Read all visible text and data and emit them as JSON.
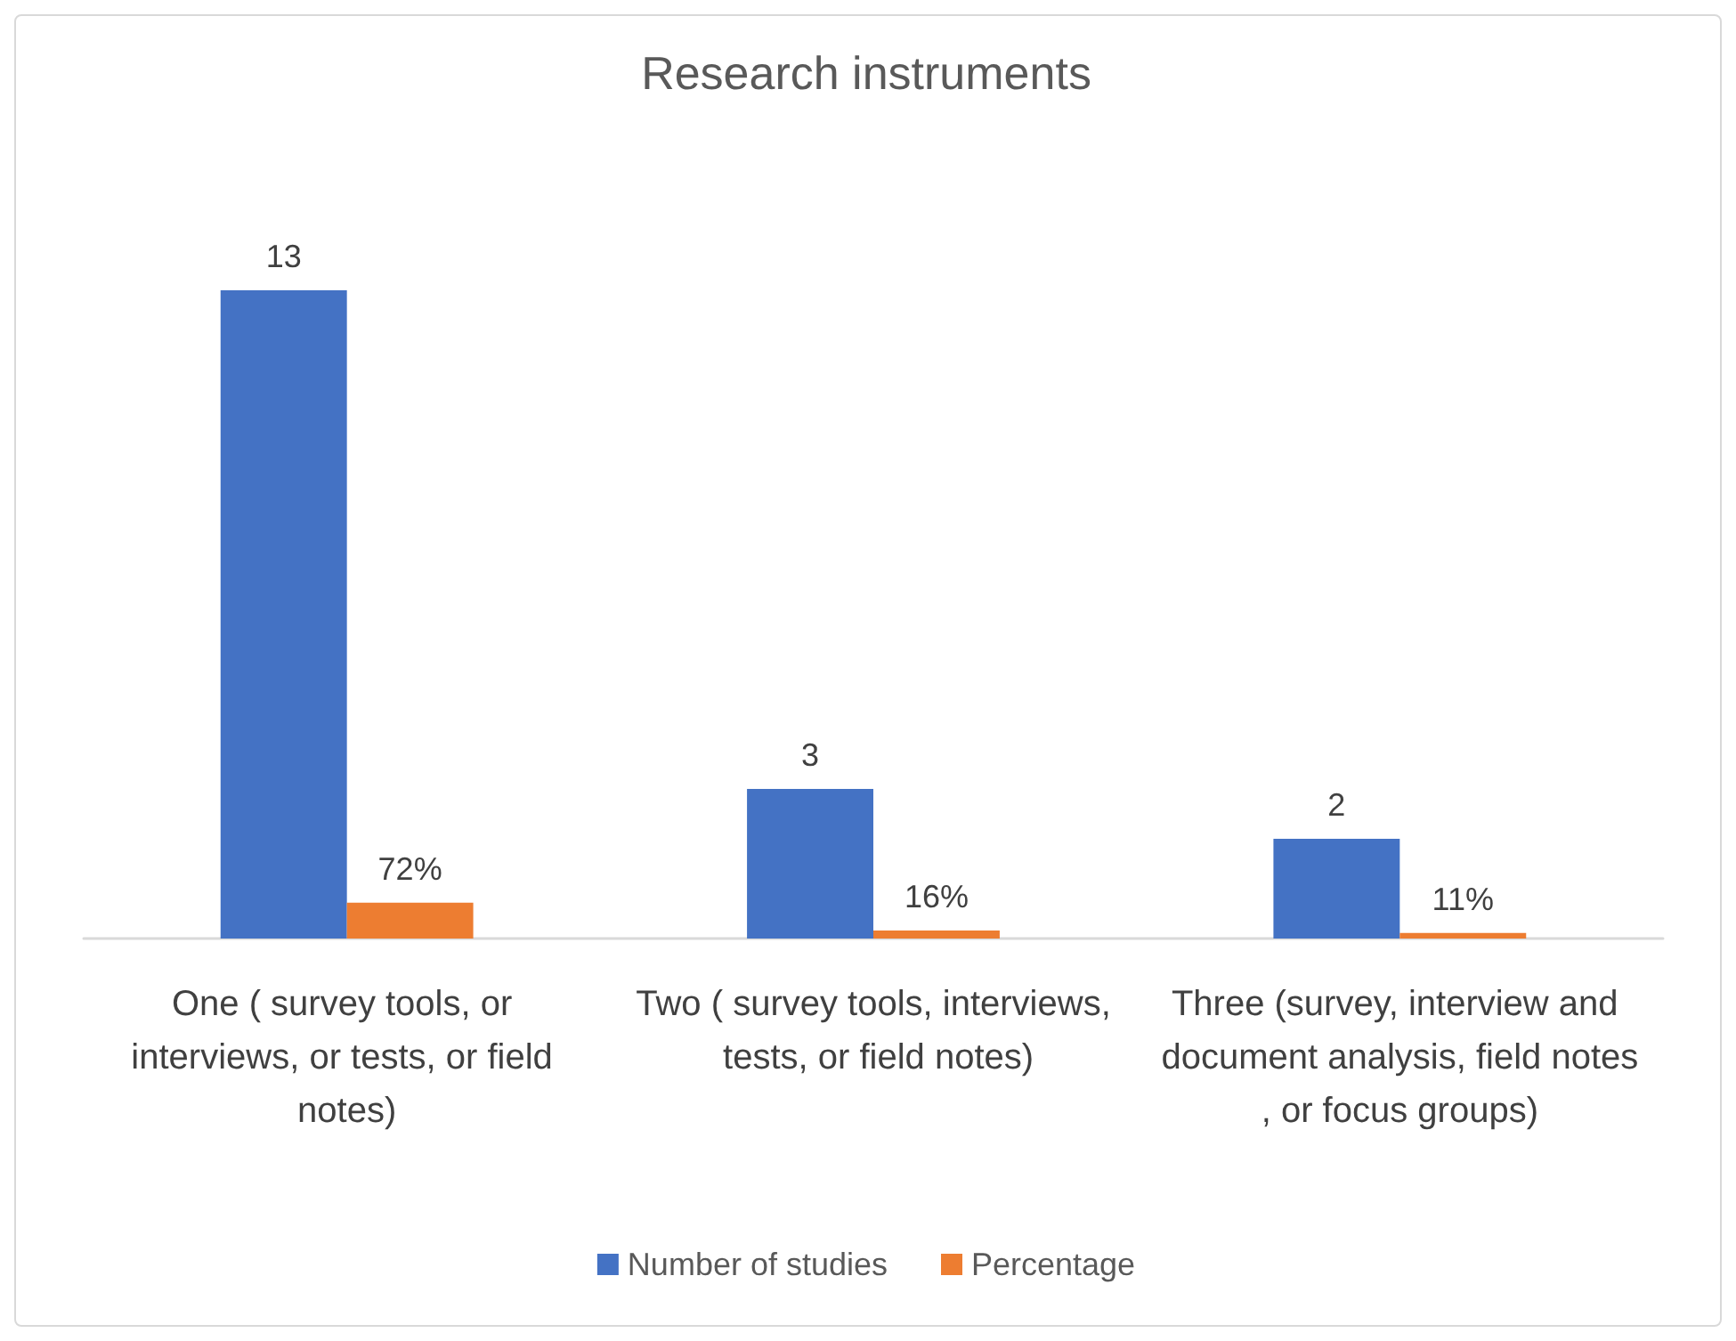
{
  "chart_data": {
    "type": "bar",
    "title": "Research instruments",
    "categories": [
      "One ( survey tools, or interviews, or tests, or field notes)",
      "Two ( survey tools, interviews, tests, or field notes)",
      "Three (survey, interview and document analysis, field notes, or focus groups)"
    ],
    "series": [
      {
        "name": "Number of studies",
        "color": "#4472c4",
        "values": [
          13,
          3,
          2
        ],
        "value_labels": [
          "13",
          "3",
          "2"
        ]
      },
      {
        "name": "Percentage",
        "color": "#ed7d31",
        "values": [
          0.72,
          0.16,
          0.11
        ],
        "value_labels": [
          "72%",
          "16%",
          "11%"
        ]
      }
    ],
    "legend": "bottom"
  }
}
